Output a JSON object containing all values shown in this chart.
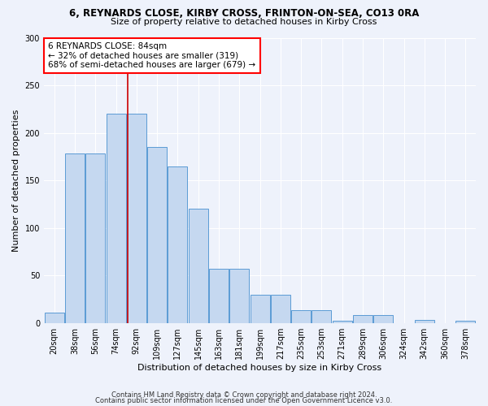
{
  "title1": "6, REYNARDS CLOSE, KIRBY CROSS, FRINTON-ON-SEA, CO13 0RA",
  "title2": "Size of property relative to detached houses in Kirby Cross",
  "xlabel": "Distribution of detached houses by size in Kirby Cross",
  "ylabel": "Number of detached properties",
  "categories": [
    "20sqm",
    "38sqm",
    "56sqm",
    "74sqm",
    "92sqm",
    "109sqm",
    "127sqm",
    "145sqm",
    "163sqm",
    "181sqm",
    "199sqm",
    "217sqm",
    "235sqm",
    "253sqm",
    "271sqm",
    "289sqm",
    "306sqm",
    "324sqm",
    "342sqm",
    "360sqm",
    "378sqm"
  ],
  "values": [
    11,
    178,
    178,
    220,
    220,
    185,
    165,
    120,
    57,
    57,
    30,
    30,
    13,
    13,
    2,
    8,
    8,
    0,
    3,
    0,
    2
  ],
  "bar_color": "#c5d8f0",
  "bar_edge_color": "#5b9bd5",
  "vline_color": "#cc0000",
  "vline_x_index": 3.5,
  "annotation_text_line1": "6 REYNARDS CLOSE: 84sqm",
  "annotation_text_line2": "← 32% of detached houses are smaller (319)",
  "annotation_text_line3": "68% of semi-detached houses are larger (679) →",
  "footer1": "Contains HM Land Registry data © Crown copyright and database right 2024.",
  "footer2": "Contains public sector information licensed under the Open Government Licence v3.0.",
  "ylim": [
    0,
    300
  ],
  "yticks": [
    0,
    50,
    100,
    150,
    200,
    250,
    300
  ],
  "background_color": "#eef2fb",
  "plot_bg_color": "#eef2fb",
  "title1_fontsize": 8.5,
  "title2_fontsize": 8.0,
  "ylabel_fontsize": 8,
  "xlabel_fontsize": 8,
  "tick_fontsize": 7,
  "annotation_fontsize": 7.5
}
